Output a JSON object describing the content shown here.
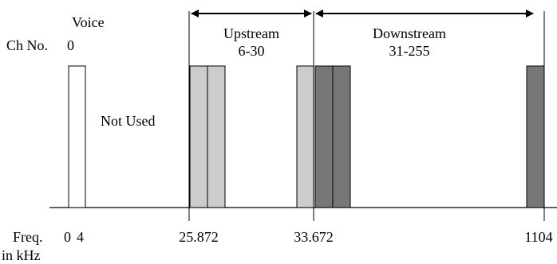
{
  "labels": {
    "voice": "Voice",
    "ch_no": "Ch No.",
    "ch_zero": "0",
    "not_used": "Not Used",
    "upstream": "Upstream",
    "upstream_range": "6-30",
    "downstream": "Downstream",
    "downstream_range": "31-255",
    "freq": "Freq.",
    "in_khz": "in kHz",
    "tick_0": "0",
    "tick_4": "4",
    "tick_25872": "25.872",
    "tick_33672": "33.672",
    "tick_1104": "1104"
  },
  "colors": {
    "upstream_fill": "#cccccc",
    "downstream_fill": "#777777",
    "voice_fill": "#ffffff",
    "stroke": "#000000"
  }
}
